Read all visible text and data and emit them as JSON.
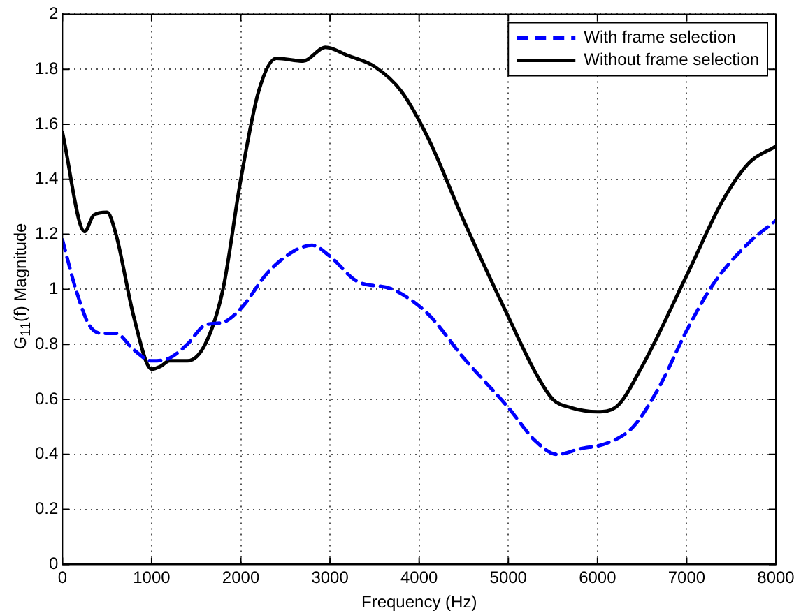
{
  "chart_data": {
    "type": "line",
    "xlabel": "Frequency (Hz)",
    "ylabel": "G$_{11}$(f) Magnitude",
    "xlim": [
      0,
      8000
    ],
    "xticks": [
      0,
      1000,
      2000,
      3000,
      4000,
      5000,
      6000,
      7000,
      8000
    ],
    "ylim": [
      0,
      2
    ],
    "yticks": [
      0,
      0.2,
      0.4,
      0.6,
      0.8,
      1,
      1.2,
      1.4,
      1.6,
      1.8,
      2
    ],
    "grid": true,
    "legend": "top right",
    "marker": "none",
    "series": [
      {
        "name": "With frame selection",
        "color": "#0000ff",
        "line_style": "dashed",
        "x": [
          0,
          150,
          300,
          450,
          600,
          800,
          1000,
          1200,
          1400,
          1600,
          1800,
          2000,
          2300,
          2600,
          2800,
          3000,
          3300,
          3700,
          4100,
          4500,
          5000,
          5300,
          5550,
          5800,
          6100,
          6400,
          6700,
          7000,
          7300,
          7700,
          8000
        ],
        "values": [
          1.18,
          1.0,
          0.87,
          0.84,
          0.84,
          0.78,
          0.74,
          0.75,
          0.8,
          0.87,
          0.88,
          0.93,
          1.06,
          1.14,
          1.16,
          1.12,
          1.03,
          1.0,
          0.91,
          0.75,
          0.57,
          0.45,
          0.4,
          0.42,
          0.44,
          0.5,
          0.65,
          0.85,
          1.02,
          1.17,
          1.25
        ]
      },
      {
        "name": "Without frame selection",
        "color": "#000000",
        "line_style": "solid",
        "x": [
          0,
          250,
          350,
          500,
          600,
          800,
          1000,
          1100,
          1200,
          1400,
          1600,
          1800,
          2000,
          2200,
          2400,
          2700,
          2950,
          3200,
          3500,
          3800,
          4100,
          4500,
          5000,
          5300,
          5500,
          5700,
          6000,
          6200,
          6500,
          7000,
          7400,
          7700,
          8000
        ],
        "values": [
          1.57,
          1.21,
          1.27,
          1.28,
          1.2,
          0.9,
          0.71,
          0.72,
          0.74,
          0.74,
          0.8,
          1.0,
          1.4,
          1.72,
          1.84,
          1.83,
          1.88,
          1.85,
          1.81,
          1.72,
          1.55,
          1.25,
          0.9,
          0.7,
          0.6,
          0.57,
          0.555,
          0.57,
          0.72,
          1.05,
          1.32,
          1.46,
          1.52
        ]
      }
    ]
  }
}
